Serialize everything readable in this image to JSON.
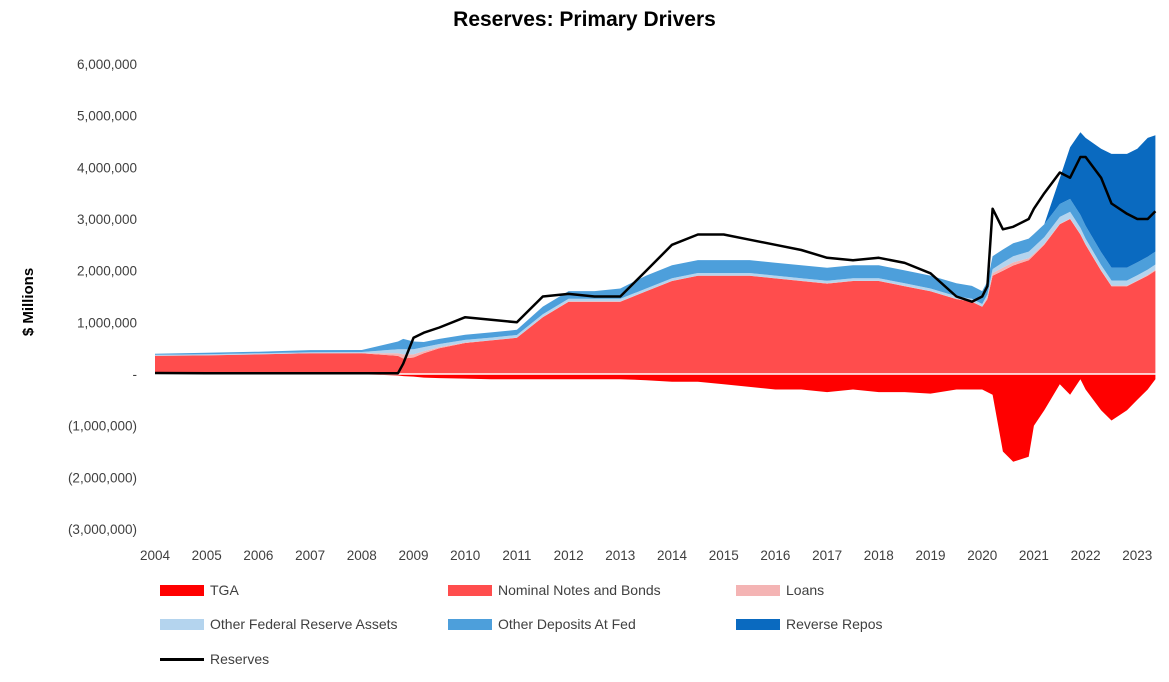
{
  "chart_data": {
    "type": "area",
    "title": "Reserves: Primary Drivers",
    "ylabel": "$ Millions",
    "xlabel": "",
    "ylim": [
      -3000000,
      6000000
    ],
    "y_ticks": [
      6000000,
      5000000,
      4000000,
      3000000,
      2000000,
      1000000,
      0,
      -1000000,
      -2000000,
      -3000000
    ],
    "y_tick_labels": [
      "6,000,000",
      "5,000,000",
      "4,000,000",
      "3,000,000",
      "2,000,000",
      "1,000,000",
      "-",
      "(1,000,000)",
      "(2,000,000)",
      "(3,000,000)"
    ],
    "x_tick_labels": [
      "2004",
      "2005",
      "2006",
      "2007",
      "2008",
      "2009",
      "2010",
      "2011",
      "2012",
      "2013",
      "2014",
      "2015",
      "2016",
      "2017",
      "2018",
      "2019",
      "2020",
      "2021",
      "2022",
      "2023"
    ],
    "grid": false,
    "legend_position": "bottom",
    "x": [
      2004.0,
      2005.0,
      2006.0,
      2007.0,
      2008.0,
      2008.7,
      2008.8,
      2009.0,
      2009.2,
      2009.5,
      2010.0,
      2010.5,
      2011.0,
      2011.5,
      2012.0,
      2012.5,
      2013.0,
      2013.5,
      2014.0,
      2014.5,
      2015.0,
      2015.5,
      2016.0,
      2016.5,
      2017.0,
      2017.5,
      2018.0,
      2018.5,
      2019.0,
      2019.5,
      2019.8,
      2020.0,
      2020.1,
      2020.2,
      2020.4,
      2020.6,
      2020.9,
      2021.0,
      2021.2,
      2021.5,
      2021.7,
      2021.9,
      2022.0,
      2022.3,
      2022.5,
      2022.8,
      2023.0,
      2023.2,
      2023.35
    ],
    "series": [
      {
        "name": "TGA",
        "color": "#ff0000",
        "values": [
          -5000,
          -5000,
          -5000,
          -5000,
          -5000,
          -30000,
          -40000,
          -50000,
          -70000,
          -80000,
          -90000,
          -100000,
          -100000,
          -100000,
          -100000,
          -100000,
          -100000,
          -120000,
          -150000,
          -150000,
          -200000,
          -250000,
          -300000,
          -300000,
          -350000,
          -300000,
          -350000,
          -350000,
          -380000,
          -300000,
          -300000,
          -300000,
          -350000,
          -400000,
          -1500000,
          -1700000,
          -1600000,
          -1000000,
          -700000,
          -200000,
          -400000,
          -100000,
          -300000,
          -700000,
          -900000,
          -700000,
          -500000,
          -300000,
          -100000
        ]
      },
      {
        "name": "Nominal Notes and Bonds",
        "color": "#ff4d4d",
        "values": [
          350000,
          360000,
          380000,
          400000,
          400000,
          350000,
          300000,
          320000,
          400000,
          500000,
          600000,
          650000,
          700000,
          1100000,
          1400000,
          1400000,
          1400000,
          1600000,
          1800000,
          1900000,
          1900000,
          1900000,
          1850000,
          1800000,
          1750000,
          1800000,
          1800000,
          1700000,
          1600000,
          1450000,
          1400000,
          1300000,
          1450000,
          1900000,
          2000000,
          2100000,
          2200000,
          2300000,
          2500000,
          2900000,
          3000000,
          2700000,
          2500000,
          2000000,
          1700000,
          1700000,
          1800000,
          1900000,
          2000000
        ]
      },
      {
        "name": "Loans",
        "color": "#f4b4b4",
        "values": [
          2000,
          2000,
          2000,
          2000,
          5000,
          50000,
          80000,
          60000,
          40000,
          20000,
          10000,
          5000,
          5000,
          5000,
          5000,
          5000,
          5000,
          5000,
          5000,
          5000,
          5000,
          5000,
          5000,
          5000,
          5000,
          5000,
          5000,
          5000,
          5000,
          5000,
          5000,
          5000,
          30000,
          50000,
          60000,
          60000,
          40000,
          30000,
          20000,
          10000,
          10000,
          10000,
          10000,
          10000,
          10000,
          10000,
          10000,
          20000,
          20000
        ]
      },
      {
        "name": "Other Federal Reserve Assets",
        "color": "#b4d4ee",
        "values": [
          20000,
          20000,
          20000,
          20000,
          20000,
          80000,
          100000,
          100000,
          80000,
          60000,
          50000,
          50000,
          50000,
          50000,
          50000,
          50000,
          50000,
          50000,
          50000,
          50000,
          50000,
          50000,
          50000,
          50000,
          50000,
          50000,
          50000,
          50000,
          50000,
          50000,
          50000,
          50000,
          60000,
          80000,
          100000,
          120000,
          130000,
          130000,
          130000,
          130000,
          130000,
          120000,
          110000,
          100000,
          100000,
          100000,
          100000,
          100000,
          100000
        ]
      },
      {
        "name": "Other Deposits At Fed",
        "color": "#4d9fdb",
        "values": [
          20000,
          30000,
          30000,
          40000,
          40000,
          150000,
          200000,
          150000,
          100000,
          100000,
          100000,
          100000,
          100000,
          150000,
          150000,
          150000,
          200000,
          250000,
          250000,
          250000,
          250000,
          250000,
          250000,
          250000,
          250000,
          250000,
          250000,
          250000,
          250000,
          250000,
          250000,
          250000,
          250000,
          250000,
          250000,
          250000,
          250000,
          250000,
          250000,
          250000,
          250000,
          250000,
          250000,
          250000,
          250000,
          250000,
          250000,
          250000,
          250000
        ]
      },
      {
        "name": "Reverse Repos",
        "color": "#0a6ac0",
        "values": [
          0,
          0,
          0,
          0,
          0,
          0,
          0,
          0,
          0,
          0,
          0,
          0,
          0,
          0,
          0,
          0,
          0,
          0,
          0,
          0,
          0,
          0,
          0,
          0,
          0,
          0,
          0,
          0,
          0,
          0,
          0,
          0,
          0,
          0,
          0,
          0,
          0,
          0,
          0,
          500000,
          1000000,
          1600000,
          1700000,
          2000000,
          2200000,
          2200000,
          2200000,
          2300000,
          2250000
        ]
      },
      {
        "name": "Reserves",
        "color": "#000000",
        "type": "line",
        "values": [
          20000,
          15000,
          15000,
          15000,
          15000,
          15000,
          200000,
          700000,
          800000,
          900000,
          1100000,
          1050000,
          1000000,
          1500000,
          1550000,
          1500000,
          1500000,
          2000000,
          2500000,
          2700000,
          2700000,
          2600000,
          2500000,
          2400000,
          2250000,
          2200000,
          2250000,
          2150000,
          1950000,
          1500000,
          1400000,
          1500000,
          1700000,
          3200000,
          2800000,
          2850000,
          3000000,
          3200000,
          3500000,
          3900000,
          3800000,
          4200000,
          4200000,
          3800000,
          3300000,
          3100000,
          3000000,
          3000000,
          3150000
        ]
      }
    ]
  }
}
